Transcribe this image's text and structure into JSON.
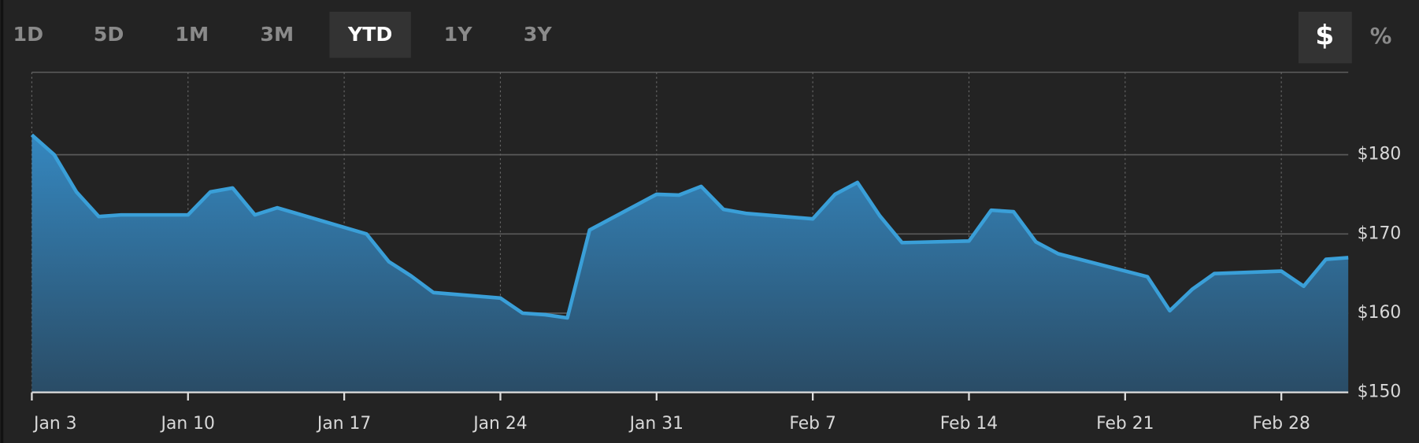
{
  "range_buttons": [
    "1D",
    "5D",
    "1M",
    "3M",
    "YTD",
    "1Y",
    "3Y"
  ],
  "active_range": 4,
  "unit_buttons": [
    "$",
    "%"
  ],
  "active_unit": 0,
  "chart_data": {
    "type": "area",
    "color": "#3a9fd8",
    "grid": true,
    "x": [
      "Jan 3",
      "Jan 4",
      "Jan 5",
      "Jan 6",
      "Jan 7",
      "Jan 10",
      "Jan 11",
      "Jan 12",
      "Jan 13",
      "Jan 14",
      "Jan 18",
      "Jan 19",
      "Jan 20",
      "Jan 21",
      "Jan 24",
      "Jan 25",
      "Jan 26",
      "Jan 27",
      "Jan 28",
      "Jan 31",
      "Feb 1",
      "Feb 2",
      "Feb 3",
      "Feb 4",
      "Feb 7",
      "Feb 8",
      "Feb 9",
      "Feb 10",
      "Feb 11",
      "Feb 14",
      "Feb 15",
      "Feb 16",
      "Feb 17",
      "Feb 18",
      "Feb 22",
      "Feb 23",
      "Feb 24",
      "Feb 25",
      "Feb 28",
      "Mar 1",
      "Mar 2",
      "Mar 3"
    ],
    "values": [
      182.5,
      180,
      175.3,
      172.2,
      172.4,
      172.4,
      175.3,
      175.8,
      172.4,
      173.3,
      170,
      166.5,
      164.7,
      162.6,
      161.9,
      160,
      159.8,
      159.4,
      170.5,
      175,
      174.9,
      176,
      173.1,
      172.6,
      171.9,
      175,
      176.5,
      172.3,
      168.9,
      169.1,
      173,
      172.8,
      169,
      167.5,
      164.6,
      160.3,
      163,
      165,
      165.3,
      163.4,
      166.8,
      167
    ],
    "xlim": [
      "Jan 3",
      "Mar 3"
    ],
    "xticks": [
      "Jan 3",
      "Jan 10",
      "Jan 17",
      "Jan 24",
      "Jan 31",
      "Feb 7",
      "Feb 14",
      "Feb 21",
      "Feb 28"
    ],
    "ylim": [
      150,
      190.4
    ],
    "yticks": [
      {
        "value": 150,
        "label": "$150"
      },
      {
        "value": 160,
        "label": "$160"
      },
      {
        "value": 170,
        "label": "$170"
      },
      {
        "value": 180,
        "label": "$180"
      }
    ]
  }
}
